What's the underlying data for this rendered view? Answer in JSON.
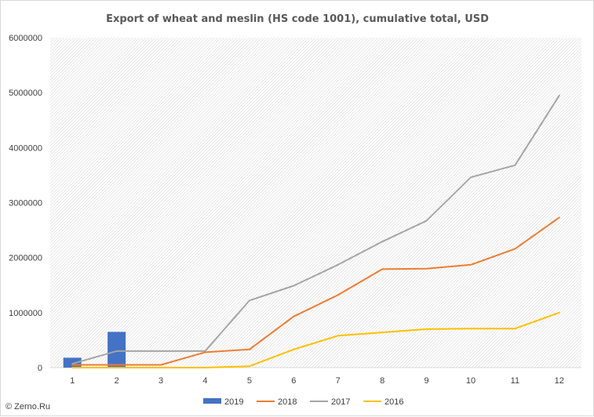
{
  "chart_data": {
    "type": "bar+line",
    "title": "Export of wheat and meslin (HS code 1001), cumulative total, USD",
    "categories": [
      "1",
      "2",
      "3",
      "4",
      "5",
      "6",
      "7",
      "8",
      "9",
      "10",
      "11",
      "12"
    ],
    "y_ticks": [
      "0",
      "1000000",
      "2000000",
      "3000000",
      "4000000",
      "5000000",
      "6000000"
    ],
    "ylim": [
      0,
      6000000
    ],
    "grid": "hatched plot area",
    "legend_position": "bottom",
    "series": [
      {
        "name": "2019",
        "kind": "bar",
        "color": "#4472c4",
        "values": [
          180000,
          650000,
          null,
          null,
          null,
          null,
          null,
          null,
          null,
          null,
          null,
          null
        ]
      },
      {
        "name": "2018",
        "kind": "line",
        "color": "#ed7d31",
        "values": [
          50000,
          50000,
          50000,
          280000,
          330000,
          930000,
          1320000,
          1790000,
          1800000,
          1870000,
          2160000,
          2730000
        ]
      },
      {
        "name": "2017",
        "kind": "line",
        "color": "#a5a5a5",
        "values": [
          70000,
          300000,
          300000,
          300000,
          1220000,
          1490000,
          1870000,
          2290000,
          2670000,
          3460000,
          3680000,
          4950000
        ]
      },
      {
        "name": "2016",
        "kind": "line",
        "color": "#ffc000",
        "values": [
          0,
          0,
          0,
          0,
          25000,
          330000,
          580000,
          640000,
          700000,
          710000,
          710000,
          1000000
        ]
      }
    ]
  },
  "watermark": "© Zerno.Ru"
}
